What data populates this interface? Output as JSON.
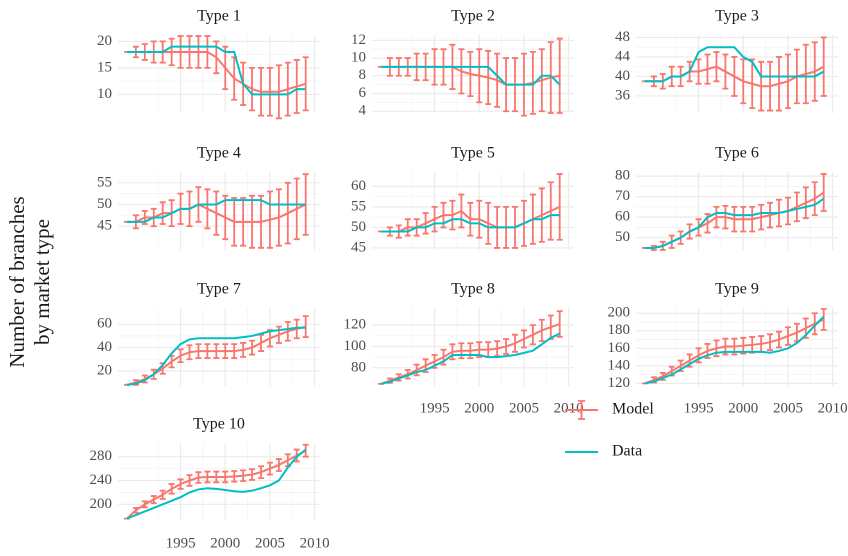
{
  "ylabel": [
    "Number of branches",
    "by market type"
  ],
  "chart_data": [
    {
      "type": "line",
      "title": "Type 1",
      "x": [
        1989,
        1990,
        1991,
        1992,
        1993,
        1994,
        1995,
        1996,
        1997,
        1998,
        1999,
        2000,
        2001,
        2002,
        2003,
        2004,
        2005,
        2006,
        2007,
        2008,
        2009
      ],
      "series": [
        {
          "name": "Model",
          "color": "#F8766D",
          "values": [
            18,
            18,
            18,
            18,
            18,
            18,
            18,
            18,
            18,
            18,
            17,
            15,
            13,
            12,
            11,
            10.5,
            10.5,
            10.5,
            11,
            11.5,
            12
          ],
          "errors": [
            0,
            1,
            1.5,
            2,
            2,
            2.5,
            3,
            3,
            3,
            3,
            3,
            4,
            4,
            4,
            4,
            4.5,
            4.5,
            5,
            5,
            5,
            5
          ]
        },
        {
          "name": "Data",
          "color": "#00BFC4",
          "values": [
            18,
            18,
            18,
            18,
            18,
            19,
            19,
            19,
            19,
            19,
            19,
            18,
            18,
            12,
            10,
            10,
            10,
            10,
            10,
            11,
            11
          ]
        }
      ],
      "xlim": [
        1988,
        2010.6
      ],
      "xticks": [
        1995,
        2000,
        2005,
        2010
      ],
      "xtick_labels": false,
      "ylim": [
        6.5,
        21.2
      ],
      "yticks": [
        10,
        15,
        20
      ],
      "grid": true
    },
    {
      "type": "line",
      "title": "Type 2",
      "x": [
        1989,
        1990,
        1991,
        1992,
        1993,
        1994,
        1995,
        1996,
        1997,
        1998,
        1999,
        2000,
        2001,
        2002,
        2003,
        2004,
        2005,
        2006,
        2007,
        2008,
        2009
      ],
      "series": [
        {
          "name": "Model",
          "color": "#F8766D",
          "values": [
            9,
            9,
            9,
            9,
            9,
            9,
            9,
            9,
            9,
            8.5,
            8.2,
            8,
            7.8,
            7.5,
            7,
            7,
            7,
            7.2,
            7.5,
            7.8,
            8
          ],
          "errors": [
            0,
            1,
            1,
            1,
            1.5,
            1.5,
            2,
            2,
            2.5,
            2.5,
            2.5,
            3,
            3,
            3,
            3,
            3,
            3.5,
            3.5,
            3.5,
            4,
            4.2
          ]
        },
        {
          "name": "Data",
          "color": "#00BFC4",
          "values": [
            9,
            9,
            9,
            9,
            9,
            9,
            9,
            9,
            9,
            9,
            9,
            9,
            9,
            8,
            7,
            7,
            7,
            7,
            8,
            8,
            7
          ]
        }
      ],
      "xlim": [
        1988,
        2010.6
      ],
      "xticks": [
        1995,
        2000,
        2005,
        2010
      ],
      "xtick_labels": false,
      "ylim": [
        3.8,
        12.6
      ],
      "yticks": [
        4,
        6,
        8,
        10,
        12
      ],
      "grid": true
    },
    {
      "type": "line",
      "title": "Type 3",
      "x": [
        1989,
        1990,
        1991,
        1992,
        1993,
        1994,
        1995,
        1996,
        1997,
        1998,
        1999,
        2000,
        2001,
        2002,
        2003,
        2004,
        2005,
        2006,
        2007,
        2008,
        2009
      ],
      "series": [
        {
          "name": "Model",
          "color": "#F8766D",
          "values": [
            39,
            39,
            39,
            40,
            40,
            41,
            41,
            41.5,
            42,
            41,
            40,
            39,
            38.5,
            38,
            38,
            38.5,
            39,
            40,
            40.5,
            41,
            42
          ],
          "errors": [
            0,
            1,
            1.5,
            2,
            2,
            2,
            2.5,
            3,
            3,
            3.5,
            4,
            4.5,
            5,
            5,
            5,
            5.5,
            5.5,
            5.5,
            6,
            6,
            6
          ]
        },
        {
          "name": "Data",
          "color": "#00BFC4",
          "values": [
            39,
            39,
            39,
            40,
            40,
            41,
            45,
            46,
            46,
            46,
            46,
            44,
            43,
            40,
            40,
            40,
            40,
            40,
            40,
            40,
            41
          ]
        }
      ],
      "xlim": [
        1988,
        2010.6
      ],
      "xticks": [
        1995,
        2000,
        2005,
        2010
      ],
      "xtick_labels": false,
      "ylim": [
        32.5,
        48.5
      ],
      "yticks": [
        36,
        40,
        44,
        48
      ],
      "grid": true
    },
    {
      "type": "line",
      "title": "Type 4",
      "x": [
        1989,
        1990,
        1991,
        1992,
        1993,
        1994,
        1995,
        1996,
        1997,
        1998,
        1999,
        2000,
        2001,
        2002,
        2003,
        2004,
        2005,
        2006,
        2007,
        2008,
        2009
      ],
      "series": [
        {
          "name": "Model",
          "color": "#F8766D",
          "values": [
            46,
            46,
            47,
            47,
            48,
            48,
            49,
            49,
            50,
            49,
            48,
            47,
            46,
            46,
            46,
            46,
            46.5,
            47,
            48,
            49,
            50
          ],
          "errors": [
            0,
            1.5,
            1.5,
            2,
            2.5,
            3,
            3.5,
            4,
            4,
            4.5,
            5,
            5,
            5.5,
            5.5,
            6,
            6,
            6.5,
            6.5,
            7,
            7,
            7
          ]
        },
        {
          "name": "Data",
          "color": "#00BFC4",
          "values": [
            46,
            46,
            46,
            47,
            47,
            48,
            49,
            49,
            50,
            50,
            50,
            51,
            51,
            51,
            51,
            51,
            50,
            50,
            50,
            50,
            50
          ]
        }
      ],
      "xlim": [
        1988,
        2010.6
      ],
      "xticks": [
        1995,
        2000,
        2005,
        2010
      ],
      "xtick_labels": false,
      "ylim": [
        39.5,
        57.5
      ],
      "yticks": [
        45,
        50,
        55
      ],
      "grid": true
    },
    {
      "type": "line",
      "title": "Type 5",
      "x": [
        1989,
        1990,
        1991,
        1992,
        1993,
        1994,
        1995,
        1996,
        1997,
        1998,
        1999,
        2000,
        2001,
        2002,
        2003,
        2004,
        2005,
        2006,
        2007,
        2008,
        2009
      ],
      "series": [
        {
          "name": "Model",
          "color": "#F8766D",
          "values": [
            49,
            49,
            49,
            50,
            50,
            51,
            52,
            53,
            53,
            54,
            52,
            52,
            51,
            50,
            50,
            50,
            51,
            52,
            53,
            54,
            55
          ],
          "errors": [
            0,
            1,
            1.5,
            2,
            2,
            2.5,
            3,
            3,
            3.5,
            4,
            4,
            4.5,
            5,
            5,
            5,
            5,
            5.5,
            6,
            6.5,
            7,
            8
          ]
        },
        {
          "name": "Data",
          "color": "#00BFC4",
          "values": [
            49,
            49,
            49,
            49,
            50,
            50,
            51,
            51,
            52,
            52,
            51,
            51,
            50,
            50,
            50,
            50,
            51,
            52,
            52,
            53,
            53
          ]
        }
      ],
      "xlim": [
        1988,
        2010.6
      ],
      "xticks": [
        1995,
        2000,
        2005,
        2010
      ],
      "xtick_labels": false,
      "ylim": [
        44.5,
        63.5
      ],
      "yticks": [
        45,
        50,
        55,
        60
      ],
      "grid": true
    },
    {
      "type": "line",
      "title": "Type 6",
      "x": [
        1989,
        1990,
        1991,
        1992,
        1993,
        1994,
        1995,
        1996,
        1997,
        1998,
        1999,
        2000,
        2001,
        2002,
        2003,
        2004,
        2005,
        2006,
        2007,
        2008,
        2009
      ],
      "series": [
        {
          "name": "Model",
          "color": "#F8766D",
          "values": [
            45,
            45,
            46,
            48,
            50,
            53,
            55,
            57,
            60,
            60,
            59,
            59,
            59,
            60,
            61,
            62,
            63,
            65,
            67,
            69,
            72
          ],
          "errors": [
            0,
            1,
            2,
            3,
            3,
            3.5,
            4,
            4.5,
            5,
            5.5,
            6,
            6,
            6,
            6,
            6,
            6.5,
            6.5,
            7,
            7.5,
            8,
            9
          ]
        },
        {
          "name": "Data",
          "color": "#00BFC4",
          "values": [
            45,
            45,
            46,
            48,
            50,
            53,
            55,
            60,
            62,
            62,
            61,
            61,
            61,
            62,
            62,
            62,
            63,
            64,
            65,
            66,
            69
          ]
        }
      ],
      "xlim": [
        1988,
        2010.6
      ],
      "xticks": [
        1995,
        2000,
        2005,
        2010
      ],
      "xtick_labels": false,
      "ylim": [
        44,
        82
      ],
      "yticks": [
        50,
        60,
        70,
        80
      ],
      "grid": true
    },
    {
      "type": "line",
      "title": "Type 7",
      "x": [
        1989,
        1990,
        1991,
        1992,
        1993,
        1994,
        1995,
        1996,
        1997,
        1998,
        1999,
        2000,
        2001,
        2002,
        2003,
        2004,
        2005,
        2006,
        2007,
        2008,
        2009
      ],
      "series": [
        {
          "name": "Model",
          "color": "#F8766D",
          "values": [
            8,
            10,
            13,
            17,
            22,
            28,
            33,
            36,
            37,
            37,
            37,
            37,
            37,
            38,
            40,
            44,
            48,
            51,
            54,
            56,
            58
          ],
          "errors": [
            0,
            2,
            3,
            4,
            4.5,
            5,
            5.5,
            6,
            6,
            6,
            6,
            6,
            6,
            6,
            6,
            7,
            7,
            7,
            8,
            8,
            9
          ]
        },
        {
          "name": "Data",
          "color": "#00BFC4",
          "values": [
            8,
            9,
            12,
            17,
            25,
            35,
            43,
            47,
            48,
            48,
            48,
            48,
            48,
            49,
            50,
            52,
            54,
            55,
            56,
            57,
            57
          ]
        }
      ],
      "xlim": [
        1988,
        2010.6
      ],
      "xticks": [
        1995,
        2000,
        2005,
        2010
      ],
      "xtick_labels": false,
      "ylim": [
        7,
        74
      ],
      "yticks": [
        20,
        40,
        60
      ],
      "grid": true
    },
    {
      "type": "line",
      "title": "Type 8",
      "x": [
        1989,
        1990,
        1991,
        1992,
        1993,
        1994,
        1995,
        1996,
        1997,
        1998,
        1999,
        2000,
        2001,
        2002,
        2003,
        2004,
        2005,
        2006,
        2007,
        2008,
        2009
      ],
      "series": [
        {
          "name": "Model",
          "color": "#F8766D",
          "values": [
            65,
            68,
            71,
            74,
            78,
            82,
            86,
            90,
            95,
            96,
            96,
            97,
            97,
            98,
            100,
            103,
            107,
            111,
            115,
            118,
            121
          ],
          "errors": [
            0,
            2,
            3,
            4,
            5,
            6,
            6,
            7,
            7,
            7,
            7,
            7,
            7,
            7,
            7,
            8,
            8,
            9,
            10,
            11,
            12
          ]
        },
        {
          "name": "Data",
          "color": "#00BFC4",
          "values": [
            65,
            67,
            70,
            73,
            76,
            78,
            82,
            86,
            92,
            92,
            92,
            92,
            90,
            90,
            91,
            92,
            94,
            96,
            102,
            108,
            112
          ]
        }
      ],
      "xlim": [
        1988,
        2010.6
      ],
      "xticks": [
        1995,
        2000,
        2005,
        2010
      ],
      "xtick_labels": true,
      "ylim": [
        63,
        136
      ],
      "yticks": [
        80,
        100,
        120
      ],
      "grid": true
    },
    {
      "type": "line",
      "title": "Type 9",
      "x": [
        1989,
        1990,
        1991,
        1992,
        1993,
        1994,
        1995,
        1996,
        1997,
        1998,
        1999,
        2000,
        2001,
        2002,
        2003,
        2004,
        2005,
        2006,
        2007,
        2008,
        2009
      ],
      "series": [
        {
          "name": "Model",
          "color": "#F8766D",
          "values": [
            120,
            124,
            128,
            134,
            140,
            146,
            152,
            157,
            160,
            162,
            162,
            163,
            164,
            165,
            167,
            170,
            174,
            178,
            183,
            188,
            193
          ],
          "errors": [
            0,
            3,
            4,
            5,
            6,
            7,
            8,
            8,
            9,
            9,
            9,
            9,
            9,
            9,
            9,
            9,
            10,
            10,
            11,
            12,
            12
          ]
        },
        {
          "name": "Data",
          "color": "#00BFC4",
          "values": [
            120,
            122,
            126,
            130,
            136,
            142,
            148,
            152,
            155,
            156,
            156,
            156,
            156,
            156,
            155,
            157,
            160,
            166,
            175,
            186,
            196
          ]
        }
      ],
      "xlim": [
        1988,
        2010.6
      ],
      "xticks": [
        1995,
        2000,
        2005,
        2010
      ],
      "xtick_labels": true,
      "ylim": [
        117,
        206
      ],
      "yticks": [
        120,
        140,
        160,
        180,
        200
      ],
      "grid": true
    },
    {
      "type": "line",
      "title": "Type 10",
      "x": [
        1989,
        1990,
        1991,
        1992,
        1993,
        1994,
        1995,
        1996,
        1997,
        1998,
        1999,
        2000,
        2001,
        2002,
        2003,
        2004,
        2005,
        2006,
        2007,
        2008,
        2009
      ],
      "series": [
        {
          "name": "Model",
          "color": "#F8766D",
          "values": [
            176,
            190,
            200,
            208,
            216,
            226,
            234,
            240,
            245,
            246,
            246,
            246,
            247,
            248,
            250,
            254,
            260,
            266,
            274,
            282,
            290
          ],
          "errors": [
            0,
            4,
            5,
            6,
            7,
            8,
            8,
            9,
            9,
            9,
            9,
            9,
            9,
            9,
            9,
            10,
            10,
            10,
            10,
            10,
            10
          ]
        },
        {
          "name": "Data",
          "color": "#00BFC4",
          "values": [
            176,
            182,
            188,
            194,
            200,
            206,
            212,
            220,
            225,
            227,
            226,
            224,
            222,
            221,
            223,
            227,
            232,
            240,
            262,
            280,
            292
          ]
        }
      ],
      "xlim": [
        1988,
        2010.6
      ],
      "xticks": [
        1995,
        2000,
        2005,
        2010
      ],
      "xtick_labels": true,
      "ylim": [
        172,
        303
      ],
      "yticks": [
        200,
        240,
        280
      ],
      "grid": true
    }
  ]
}
